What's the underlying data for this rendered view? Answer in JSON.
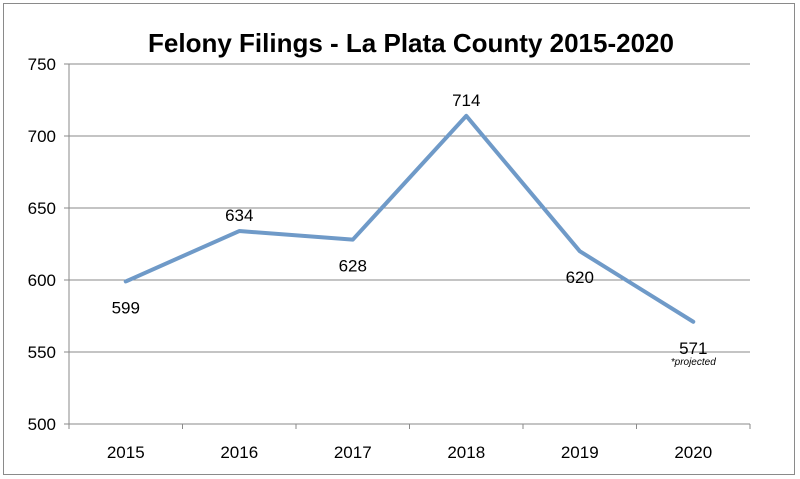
{
  "chart_data": {
    "type": "line",
    "title": "Felony Filings - La Plata County  2015-2020",
    "categories": [
      "2015",
      "2016",
      "2017",
      "2018",
      "2019",
      "2020"
    ],
    "series": [
      {
        "values": [
          599,
          634,
          628,
          714,
          620,
          571
        ],
        "color": "#6f9ac8"
      }
    ],
    "data_labels": [
      "599",
      "634",
      "628",
      "714",
      "620",
      "571"
    ],
    "annotation": "*projected",
    "ylim": [
      500,
      750
    ],
    "yticks": [
      500,
      550,
      600,
      650,
      700,
      750
    ],
    "grid": true,
    "legend": "none"
  }
}
